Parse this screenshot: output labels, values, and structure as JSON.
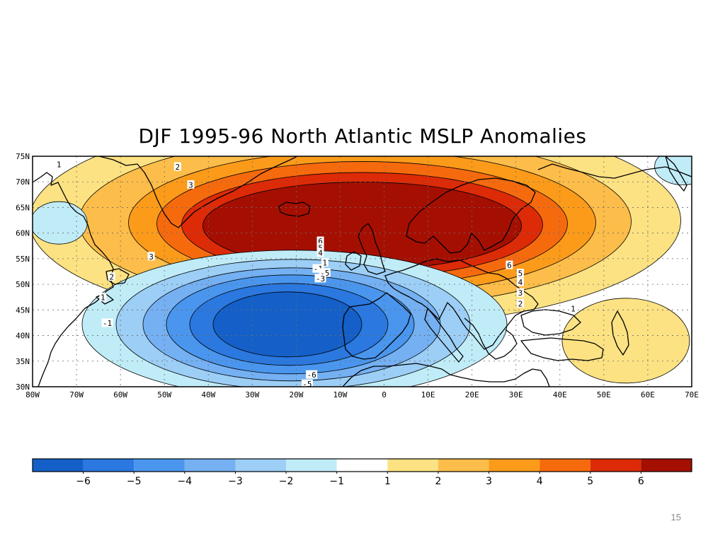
{
  "title": "DJF 1995-96 North Atlantic MSLP Anomalies",
  "page_number": "15",
  "map": {
    "lat_labels": [
      "75N",
      "70N",
      "65N",
      "60N",
      "55N",
      "50N",
      "45N",
      "40N",
      "35N",
      "30N"
    ],
    "lon_labels": [
      "80W",
      "70W",
      "60W",
      "50W",
      "40W",
      "30W",
      "20W",
      "10W",
      "0",
      "10E",
      "20E",
      "30E",
      "40E",
      "50E",
      "60E",
      "70E"
    ],
    "lat_range": [
      30,
      75
    ],
    "lon_range": [
      -80,
      70
    ],
    "land_color": "#ffffff",
    "coastline_color": "#000000",
    "grid": "dotted"
  },
  "anomaly_centers": [
    {
      "name": "high",
      "lon": -5,
      "lat": 63,
      "peak": 7
    },
    {
      "name": "low",
      "lon": -22,
      "lat": 43,
      "peak": -6.5
    }
  ],
  "contour_labels": [
    {
      "text": "1",
      "lon": -74,
      "lat": 73.5
    },
    {
      "text": "2",
      "lon": -47,
      "lat": 73
    },
    {
      "text": "3",
      "lon": -44,
      "lat": 69.5
    },
    {
      "text": "3",
      "lon": -53,
      "lat": 55.5
    },
    {
      "text": "2",
      "lon": -62,
      "lat": 51.5
    },
    {
      "text": "1",
      "lon": -64,
      "lat": 47.5
    },
    {
      "text": "-1",
      "lon": -63,
      "lat": 42.5
    },
    {
      "text": "6",
      "lon": -14.5,
      "lat": 58.5
    },
    {
      "text": "5",
      "lon": -14.5,
      "lat": 57.2
    },
    {
      "text": "4",
      "lon": -14.5,
      "lat": 56.2
    },
    {
      "text": "1",
      "lon": -13.5,
      "lat": 54.3
    },
    {
      "text": "-1",
      "lon": -15,
      "lat": 53.1
    },
    {
      "text": "-5",
      "lon": -13.5,
      "lat": 52.3
    },
    {
      "text": "-3",
      "lon": -14.5,
      "lat": 51.2
    },
    {
      "text": "6",
      "lon": 28.5,
      "lat": 53.8
    },
    {
      "text": "5",
      "lon": 31,
      "lat": 52.2
    },
    {
      "text": "4",
      "lon": 31,
      "lat": 50.5
    },
    {
      "text": "3",
      "lon": 31,
      "lat": 48.4
    },
    {
      "text": "2",
      "lon": 31,
      "lat": 46.3
    },
    {
      "text": "1",
      "lon": 43,
      "lat": 45.3
    },
    {
      "text": "-6",
      "lon": -16.5,
      "lat": 32.4
    },
    {
      "text": "-5",
      "lon": -17.5,
      "lat": 30.6
    }
  ],
  "colorbar": {
    "colors": [
      "#1460c8",
      "#2a78e0",
      "#4a96ee",
      "#74b0f2",
      "#9ccef6",
      "#c0ecf8",
      "#ffffff",
      "#fde283",
      "#fdbd4a",
      "#fc9b1a",
      "#f66a0e",
      "#dd2a07",
      "#a50f02"
    ],
    "labels": [
      "−6",
      "−5",
      "−4",
      "−3",
      "−2",
      "−1",
      "1",
      "2",
      "3",
      "4",
      "5",
      "6"
    ]
  }
}
